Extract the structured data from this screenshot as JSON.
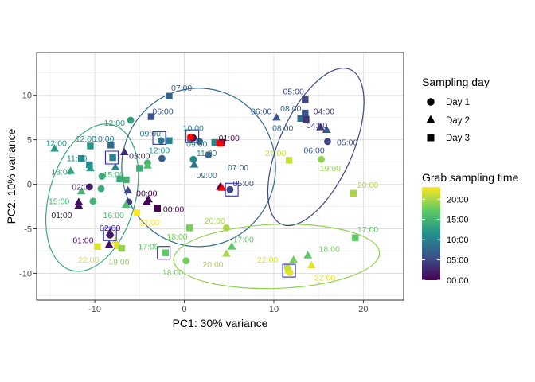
{
  "chart_data": {
    "type": "scatter",
    "xlabel": "PC1: 30% variance",
    "ylabel": "PC2: 10% variance",
    "xlim": [
      -16.5,
      24.5
    ],
    "ylim": [
      -13,
      14.8
    ],
    "xticks": [
      -10,
      0,
      10,
      20
    ],
    "yticks": [
      -10,
      -5,
      0,
      5,
      10
    ],
    "grid": true,
    "legend_shape": {
      "title": "Sampling day",
      "entries": [
        {
          "label": "Day 1",
          "shape": "circle"
        },
        {
          "label": "Day 2",
          "shape": "triangle"
        },
        {
          "label": "Day 3",
          "shape": "square"
        }
      ]
    },
    "legend_color": {
      "title": "Grab sampling time",
      "ticks": [
        "20:00",
        "15:00",
        "10:00",
        "05:00",
        "00:00"
      ],
      "tick_values": [
        20,
        15,
        10,
        5,
        0
      ],
      "range": [
        0,
        23
      ],
      "colormap": "viridis"
    },
    "points": [
      {
        "x": -14.5,
        "y": 4.0,
        "shape": "triangle",
        "hour": 12
      },
      {
        "x": -12.7,
        "y": 1.5,
        "shape": "triangle",
        "hour": 13
      },
      {
        "x": -11.5,
        "y": 2.9,
        "shape": "square",
        "hour": 11
      },
      {
        "x": -10.5,
        "y": 4.3,
        "shape": "square",
        "hour": 12
      },
      {
        "x": -10.6,
        "y": 2.2,
        "shape": "square",
        "hour": 11
      },
      {
        "x": -10.5,
        "y": 1.8,
        "shape": "triangle",
        "hour": 12
      },
      {
        "x": -11.5,
        "y": -0.8,
        "shape": "triangle",
        "hour": 15
      },
      {
        "x": -11.8,
        "y": -2.0,
        "shape": "triangle",
        "hour": 1
      },
      {
        "x": -11.8,
        "y": -2.4,
        "shape": "triangle",
        "hour": 1
      },
      {
        "x": -10.6,
        "y": -0.3,
        "shape": "circle",
        "hour": 2
      },
      {
        "x": -10.2,
        "y": -1.9,
        "shape": "circle",
        "hour": 15
      },
      {
        "x": -9.3,
        "y": -0.5,
        "shape": "circle",
        "hour": 14
      },
      {
        "x": -8.0,
        "y": 3.0,
        "shape": "square",
        "hour": 10
      },
      {
        "x": -8.2,
        "y": 4.4,
        "shape": "square",
        "hour": 8
      },
      {
        "x": -7.7,
        "y": 1.9,
        "shape": "triangle",
        "hour": 10
      },
      {
        "x": -9.2,
        "y": 0.9,
        "shape": "circle",
        "hour": 14
      },
      {
        "x": -7.2,
        "y": 0.6,
        "shape": "square",
        "hour": 14
      },
      {
        "x": -6.5,
        "y": 0.5,
        "shape": "square",
        "hour": 15
      },
      {
        "x": -6.3,
        "y": -0.7,
        "shape": "triangle",
        "hour": 5
      },
      {
        "x": -6.2,
        "y": -2.0,
        "shape": "circle",
        "hour": 4
      },
      {
        "x": -6.5,
        "y": -2.3,
        "shape": "triangle",
        "hour": 16
      },
      {
        "x": -6.7,
        "y": 3.6,
        "shape": "triangle",
        "hour": 3
      },
      {
        "x": -6.0,
        "y": 7.2,
        "shape": "circle",
        "hour": 13
      },
      {
        "x": -5.0,
        "y": 1.8,
        "shape": "square",
        "hour": 14
      },
      {
        "x": -4.1,
        "y": 2.4,
        "shape": "circle",
        "hour": 15
      },
      {
        "x": -4.1,
        "y": 2.1,
        "shape": "triangle",
        "hour": 16
      },
      {
        "x": -4.0,
        "y": -1.7,
        "shape": "triangle",
        "hour": 1
      },
      {
        "x": -4.2,
        "y": -2.0,
        "shape": "triangle",
        "hour": 0
      },
      {
        "x": -3.0,
        "y": -2.7,
        "shape": "square",
        "hour": 0
      },
      {
        "x": -5.3,
        "y": -3.2,
        "shape": "square",
        "hour": 23
      },
      {
        "x": -8.3,
        "y": -5.4,
        "shape": "triangle",
        "hour": 2
      },
      {
        "x": -8.3,
        "y": -5.7,
        "shape": "circle",
        "hour": 2
      },
      {
        "x": -8.4,
        "y": -6.8,
        "shape": "triangle",
        "hour": 1
      },
      {
        "x": -7.7,
        "y": -6.4,
        "shape": "triangle",
        "hour": 22
      },
      {
        "x": -7.5,
        "y": -6.9,
        "shape": "circle",
        "hour": 22
      },
      {
        "x": -9.7,
        "y": -7.0,
        "shape": "square",
        "hour": 22
      },
      {
        "x": -7.0,
        "y": -7.2,
        "shape": "square",
        "hour": 19
      },
      {
        "x": -3.7,
        "y": 7.6,
        "shape": "square",
        "hour": 6
      },
      {
        "x": -2.6,
        "y": 4.9,
        "shape": "circle",
        "hour": 9
      },
      {
        "x": -1.7,
        "y": 4.9,
        "shape": "square",
        "hour": 10
      },
      {
        "x": -2.5,
        "y": 2.9,
        "shape": "circle",
        "hour": 7
      },
      {
        "x": -1.7,
        "y": 9.9,
        "shape": "square",
        "hour": 7
      },
      {
        "x": 0.9,
        "y": 5.3,
        "shape": "circle",
        "hour": 9
      },
      {
        "x": 0.7,
        "y": 5.0,
        "shape": "circle",
        "hour": 9
      },
      {
        "x": 1.7,
        "y": 4.8,
        "shape": "circle",
        "hour": 8
      },
      {
        "x": 3.4,
        "y": 4.7,
        "shape": "square",
        "hour": 10
      },
      {
        "x": 4.2,
        "y": 4.7,
        "shape": "square",
        "hour": 1
      },
      {
        "x": 1.0,
        "y": 5.2,
        "shape": "circle",
        "hour": 0
      },
      {
        "x": 1.0,
        "y": 2.8,
        "shape": "circle",
        "hour": 11
      },
      {
        "x": 1.1,
        "y": 2.2,
        "shape": "triangle",
        "hour": 9
      },
      {
        "x": 2.7,
        "y": 3.3,
        "shape": "circle",
        "hour": 7
      },
      {
        "x": 4.0,
        "y": -0.3,
        "shape": "triangle",
        "hour": 0
      },
      {
        "x": 5.1,
        "y": -0.6,
        "shape": "circle",
        "hour": 5
      },
      {
        "x": -2.1,
        "y": -7.7,
        "shape": "square",
        "hour": 17
      },
      {
        "x": 0.6,
        "y": -4.9,
        "shape": "square",
        "hour": 18
      },
      {
        "x": 4.7,
        "y": -4.9,
        "shape": "circle",
        "hour": 20
      },
      {
        "x": 0.2,
        "y": -8.6,
        "shape": "circle",
        "hour": 18
      },
      {
        "x": 4.7,
        "y": -7.8,
        "shape": "triangle",
        "hour": 20
      },
      {
        "x": 5.3,
        "y": -7.0,
        "shape": "triangle",
        "hour": 17
      },
      {
        "x": 11.6,
        "y": -9.6,
        "shape": "square",
        "hour": 22
      },
      {
        "x": 11.8,
        "y": -9.9,
        "shape": "circle",
        "hour": 22
      },
      {
        "x": 12.2,
        "y": -8.5,
        "shape": "triangle",
        "hour": 18
      },
      {
        "x": 13.8,
        "y": -8.0,
        "shape": "triangle",
        "hour": 17
      },
      {
        "x": 14.2,
        "y": -9.1,
        "shape": "triangle",
        "hour": 22
      },
      {
        "x": 11.5,
        "y": -9.3,
        "shape": "circle",
        "hour": 21
      },
      {
        "x": 10.3,
        "y": 7.5,
        "shape": "triangle",
        "hour": 6
      },
      {
        "x": 13.0,
        "y": 7.4,
        "shape": "square",
        "hour": 8
      },
      {
        "x": 13.5,
        "y": 9.5,
        "shape": "square",
        "hour": 5
      },
      {
        "x": 13.5,
        "y": 8.0,
        "shape": "square",
        "hour": 6
      },
      {
        "x": 13.6,
        "y": 7.3,
        "shape": "square",
        "hour": 4
      },
      {
        "x": 15.2,
        "y": 6.4,
        "shape": "triangle",
        "hour": 4
      },
      {
        "x": 15.9,
        "y": 6.1,
        "shape": "triangle",
        "hour": 6
      },
      {
        "x": 16.0,
        "y": 4.8,
        "shape": "circle",
        "hour": 5
      },
      {
        "x": 15.3,
        "y": 2.8,
        "shape": "circle",
        "hour": 19
      },
      {
        "x": 11.7,
        "y": 2.7,
        "shape": "square",
        "hour": 21
      },
      {
        "x": 18.9,
        "y": -1.0,
        "shape": "square",
        "hour": 20
      },
      {
        "x": 19.1,
        "y": -6.0,
        "shape": "square",
        "hour": 17
      }
    ],
    "highlights": [
      {
        "x": 0.7,
        "y": 5.3,
        "color": "#ff0000",
        "shape": "circle"
      },
      {
        "x": 4.0,
        "y": 4.6,
        "color": "#ff0000",
        "shape": "square"
      },
      {
        "x": 4.2,
        "y": -0.4,
        "color": "#ff0000",
        "shape": "triangle"
      }
    ],
    "boxes": [
      {
        "x": -8.1,
        "y": 3.0
      },
      {
        "x": -2.8,
        "y": 5.2
      },
      {
        "x": 0.9,
        "y": 5.4
      },
      {
        "x": 5.3,
        "y": -0.6
      },
      {
        "x": -8.3,
        "y": -5.6
      },
      {
        "x": -2.3,
        "y": -7.7
      },
      {
        "x": 11.7,
        "y": -9.7
      }
    ],
    "ellipses": [
      {
        "cx": -10.3,
        "cy": -1.5,
        "rx": 4.8,
        "ry": 8.5,
        "angle_deg": 16,
        "hour": 14
      },
      {
        "cx": 1.6,
        "cy": 1.9,
        "rx": 8.6,
        "ry": 8.9,
        "angle_deg": 0,
        "hour": 8
      },
      {
        "cx": 14.7,
        "cy": 4.2,
        "rx": 4.1,
        "ry": 9.5,
        "angle_deg": 24,
        "hour": 5
      },
      {
        "cx": 10.3,
        "cy": -8.1,
        "rx": 11.5,
        "ry": 3.6,
        "angle_deg": -2,
        "hour": 19
      }
    ],
    "annotations": [
      {
        "text": "12:00",
        "x": -14.3,
        "y": 4.6,
        "hour": 12
      },
      {
        "text": "12:00",
        "x": -11.0,
        "y": 5.1,
        "hour": 12
      },
      {
        "text": "11:00",
        "x": -12.0,
        "y": 2.9,
        "hour": 11
      },
      {
        "text": "13:00",
        "x": -13.7,
        "y": 1.4,
        "hour": 13
      },
      {
        "text": "15:00",
        "x": -14.0,
        "y": -1.9,
        "hour": 15
      },
      {
        "text": "01:00",
        "x": -13.7,
        "y": -3.5,
        "hour": 1
      },
      {
        "text": "02:00",
        "x": -11.4,
        "y": -0.3,
        "hour": 2
      },
      {
        "text": "10:00",
        "x": -9.0,
        "y": 5.1,
        "hour": 10
      },
      {
        "text": "12:00",
        "x": -7.8,
        "y": 6.9,
        "hour": 12
      },
      {
        "text": "03:00",
        "x": -5.0,
        "y": 3.2,
        "hour": 3
      },
      {
        "text": "15:00",
        "x": -7.9,
        "y": 1.1,
        "hour": 15
      },
      {
        "text": "16:00",
        "x": -7.9,
        "y": -3.5,
        "hour": 16
      },
      {
        "text": "00:00",
        "x": -4.2,
        "y": -1.0,
        "hour": 0
      },
      {
        "text": "00:00",
        "x": -1.2,
        "y": -2.8,
        "hour": 0
      },
      {
        "text": "23:00",
        "x": -3.9,
        "y": -4.3,
        "hour": 23
      },
      {
        "text": "02:00",
        "x": -8.3,
        "y": -4.9,
        "hour": 2
      },
      {
        "text": "01:00",
        "x": -11.3,
        "y": -6.3,
        "hour": 1
      },
      {
        "text": "22:00",
        "x": -10.7,
        "y": -8.5,
        "hour": 22
      },
      {
        "text": "19:00",
        "x": -7.3,
        "y": -8.7,
        "hour": 19
      },
      {
        "text": "17:00",
        "x": -4.0,
        "y": -7.0,
        "hour": 17
      },
      {
        "text": "18:00",
        "x": -0.8,
        "y": -5.9,
        "hour": 18
      },
      {
        "text": "18:00",
        "x": -1.3,
        "y": -9.9,
        "hour": 18
      },
      {
        "text": "20:00",
        "x": 3.4,
        "y": -4.1,
        "hour": 20
      },
      {
        "text": "17:00",
        "x": 6.6,
        "y": -6.2,
        "hour": 17
      },
      {
        "text": "20:00",
        "x": 3.2,
        "y": -9.0,
        "hour": 20
      },
      {
        "text": "06:00",
        "x": -2.4,
        "y": 8.2,
        "hour": 6
      },
      {
        "text": "07:00",
        "x": -0.3,
        "y": 10.8,
        "hour": 7
      },
      {
        "text": "09:00",
        "x": -3.8,
        "y": 5.7,
        "hour": 9
      },
      {
        "text": "12:00",
        "x": -2.8,
        "y": 3.8,
        "hour": 12
      },
      {
        "text": "10:00",
        "x": 1.0,
        "y": 6.3,
        "hour": 10
      },
      {
        "text": "09:00",
        "x": 1.4,
        "y": 4.5,
        "hour": 9
      },
      {
        "text": "01:00",
        "x": 5.0,
        "y": 5.2,
        "hour": 1
      },
      {
        "text": "11:00",
        "x": 2.5,
        "y": 3.5,
        "hour": 11
      },
      {
        "text": "09:00",
        "x": 2.5,
        "y": 1.0,
        "hour": 9
      },
      {
        "text": "07:00",
        "x": 6.0,
        "y": 1.9,
        "hour": 7
      },
      {
        "text": "05:00",
        "x": 6.6,
        "y": 0.1,
        "hour": 5
      },
      {
        "text": "06:00",
        "x": 8.6,
        "y": 8.2,
        "hour": 6
      },
      {
        "text": "05:00",
        "x": 12.2,
        "y": 10.4,
        "hour": 5
      },
      {
        "text": "08:00",
        "x": 11.9,
        "y": 8.5,
        "hour": 8
      },
      {
        "text": "04:00",
        "x": 15.6,
        "y": 8.2,
        "hour": 4
      },
      {
        "text": "08:00",
        "x": 11.0,
        "y": 6.3,
        "hour": 8
      },
      {
        "text": "04:00",
        "x": 14.8,
        "y": 6.6,
        "hour": 4
      },
      {
        "text": "05:00",
        "x": 18.2,
        "y": 4.7,
        "hour": 5
      },
      {
        "text": "06:00",
        "x": 14.5,
        "y": 3.8,
        "hour": 6
      },
      {
        "text": "21:00",
        "x": 10.2,
        "y": 3.5,
        "hour": 21
      },
      {
        "text": "19:00",
        "x": 16.3,
        "y": 1.8,
        "hour": 19
      },
      {
        "text": "20:00",
        "x": 20.5,
        "y": -0.1,
        "hour": 20
      },
      {
        "text": "17:00",
        "x": 20.5,
        "y": -5.1,
        "hour": 17
      },
      {
        "text": "18:00",
        "x": 16.2,
        "y": -7.3,
        "hour": 18
      },
      {
        "text": "22:00",
        "x": 9.3,
        "y": -8.5,
        "hour": 22
      },
      {
        "text": "22:00",
        "x": 15.7,
        "y": -10.5,
        "hour": 22
      }
    ]
  }
}
